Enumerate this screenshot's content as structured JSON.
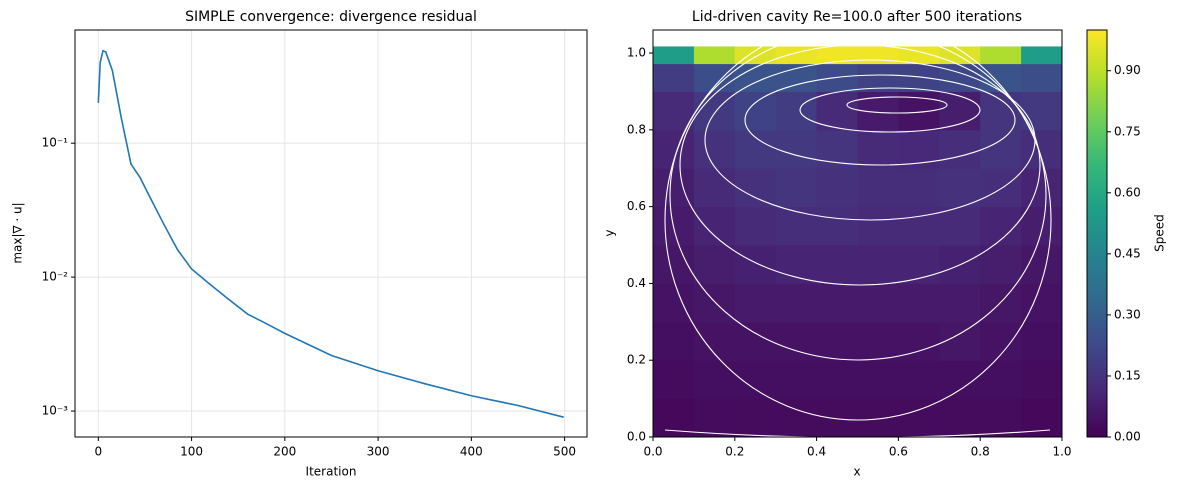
{
  "chart_data": [
    {
      "type": "line",
      "title": "SIMPLE convergence: divergence residual",
      "xlabel": "Iteration",
      "ylabel": "max|∇ · u|",
      "x": [
        0,
        2,
        5,
        8,
        15,
        25,
        35,
        45,
        55,
        70,
        85,
        100,
        120,
        140,
        160,
        180,
        200,
        250,
        300,
        350,
        400,
        450,
        499
      ],
      "values": [
        0.2,
        0.4,
        0.49,
        0.48,
        0.35,
        0.15,
        0.07,
        0.055,
        0.04,
        0.025,
        0.016,
        0.0115,
        0.0088,
        0.0068,
        0.0053,
        0.0045,
        0.0038,
        0.0026,
        0.002,
        0.0016,
        0.0013,
        0.0011,
        0.0009
      ],
      "color": "#1f77b4",
      "xlim": [
        -25,
        524
      ],
      "ylim": [
        0.00064,
        0.7
      ],
      "log_y": true,
      "grid": true,
      "xticks": [
        0,
        100,
        200,
        300,
        400,
        500
      ],
      "yticks": [
        {
          "value": 0.001,
          "label": "10⁻³"
        },
        {
          "value": 0.01,
          "label": "10⁻²"
        },
        {
          "value": 0.1,
          "label": "10⁻¹"
        }
      ]
    },
    {
      "type": "contour",
      "title": "Lid-driven cavity Re=100.0 after 500 iterations",
      "xlabel": "x",
      "ylabel": "y",
      "x": [
        0.05,
        0.15,
        0.25,
        0.35,
        0.45,
        0.55,
        0.65,
        0.75,
        0.85,
        0.95
      ],
      "y": [
        0.05,
        0.15,
        0.25,
        0.35,
        0.45,
        0.55,
        0.65,
        0.75,
        0.85,
        0.95,
        0.995
      ],
      "z": [
        [
          0.02,
          0.03,
          0.03,
          0.03,
          0.03,
          0.03,
          0.03,
          0.03,
          0.03,
          0.02
        ],
        [
          0.03,
          0.04,
          0.04,
          0.04,
          0.04,
          0.04,
          0.04,
          0.04,
          0.04,
          0.03
        ],
        [
          0.04,
          0.05,
          0.05,
          0.05,
          0.05,
          0.05,
          0.05,
          0.06,
          0.05,
          0.04
        ],
        [
          0.05,
          0.06,
          0.07,
          0.07,
          0.07,
          0.07,
          0.07,
          0.07,
          0.06,
          0.05
        ],
        [
          0.06,
          0.08,
          0.09,
          0.1,
          0.1,
          0.1,
          0.1,
          0.09,
          0.08,
          0.06
        ],
        [
          0.07,
          0.1,
          0.12,
          0.13,
          0.13,
          0.12,
          0.12,
          0.12,
          0.1,
          0.08
        ],
        [
          0.08,
          0.12,
          0.14,
          0.15,
          0.14,
          0.13,
          0.13,
          0.14,
          0.13,
          0.1
        ],
        [
          0.1,
          0.14,
          0.17,
          0.17,
          0.15,
          0.12,
          0.11,
          0.13,
          0.15,
          0.13
        ],
        [
          0.12,
          0.17,
          0.2,
          0.18,
          0.12,
          0.07,
          0.05,
          0.08,
          0.15,
          0.17
        ],
        [
          0.18,
          0.24,
          0.26,
          0.26,
          0.23,
          0.2,
          0.2,
          0.22,
          0.26,
          0.24
        ],
        [
          0.55,
          0.88,
          0.95,
          0.97,
          0.98,
          0.98,
          0.97,
          0.95,
          0.88,
          0.55
        ]
      ],
      "colormap": [
        "#440154",
        "#482878",
        "#3e4989",
        "#31688e",
        "#26828e",
        "#1f9e89",
        "#35b779",
        "#6ece58",
        "#b5de2b",
        "#fde725"
      ],
      "xlim": [
        0,
        1
      ],
      "ylim": [
        0,
        1.06
      ],
      "xticks": [
        {
          "value": 0,
          "label": "0.0"
        },
        {
          "value": 0.2,
          "label": "0.2"
        },
        {
          "value": 0.4,
          "label": "0.4"
        },
        {
          "value": 0.6,
          "label": "0.6"
        },
        {
          "value": 0.8,
          "label": "0.8"
        },
        {
          "value": 1,
          "label": "1.0"
        }
      ],
      "yticks": [
        {
          "value": 0,
          "label": "0.0"
        },
        {
          "value": 0.2,
          "label": "0.2"
        },
        {
          "value": 0.4,
          "label": "0.4"
        },
        {
          "value": 0.6,
          "label": "0.6"
        },
        {
          "value": 0.8,
          "label": "0.8"
        },
        {
          "value": 1,
          "label": "1.0"
        }
      ],
      "colorbar_label": "Speed",
      "colorbar_lim": [
        0,
        1.0
      ],
      "colorbar_ticks": [
        {
          "value": 0,
          "label": "0.00"
        },
        {
          "value": 0.15,
          "label": "0.15"
        },
        {
          "value": 0.3,
          "label": "0.30"
        },
        {
          "value": 0.45,
          "label": "0.45"
        },
        {
          "value": 0.6,
          "label": "0.60"
        },
        {
          "value": 0.75,
          "label": "0.75"
        },
        {
          "value": 0.9,
          "label": "0.90"
        }
      ]
    }
  ]
}
